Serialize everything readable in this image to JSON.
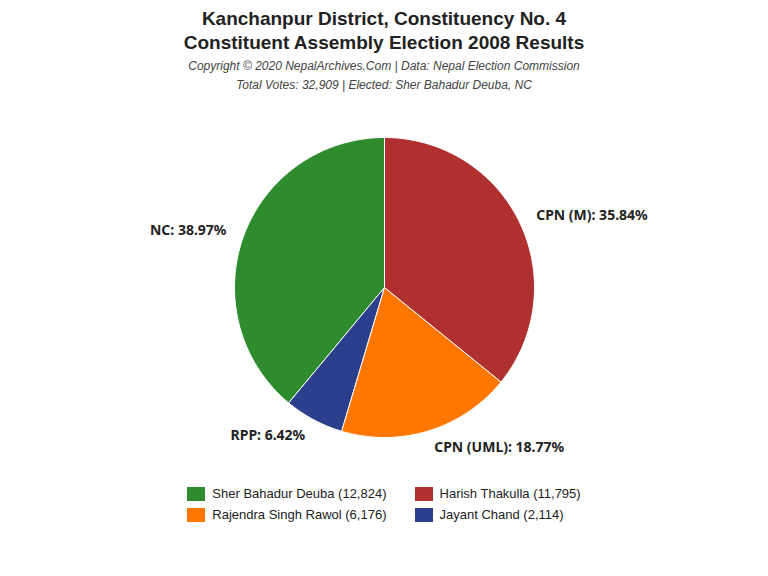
{
  "chart_data": {
    "type": "pie",
    "title": "Kanchanpur District, Constituency No. 4",
    "subtitle": "Constituent Assembly Election 2008 Results",
    "annotations": [
      "Copyright © 2020 NepalArchives.Com | Data: Nepal Election Commission",
      "Total Votes: 32,909 | Elected: Sher Bahadur Deuba, NC"
    ],
    "categories": [
      "NC",
      "RPP",
      "CPN (UML)",
      "CPN (M)"
    ],
    "values": [
      38.97,
      6.42,
      18.77,
      35.84
    ],
    "colors": [
      "#2e8b2e",
      "#2b3f8c",
      "#ff7700",
      "#b03030"
    ],
    "data_labels": true,
    "value_labels": [
      "NC: 38.97%",
      "RPP: 6.42%",
      "CPN (UML): 18.77%",
      "CPN (M): 35.84%"
    ],
    "legend": "bottom",
    "legend_entries": [
      {
        "label": "Sher Bahadur Deuba (12,824)",
        "color": "#2e8b2e"
      },
      {
        "label": "Harish Thakulla (11,795)",
        "color": "#b03030"
      },
      {
        "label": "Rajendra Singh Rawol (6,176)",
        "color": "#ff7700"
      },
      {
        "label": "Jayant Chand (2,114)",
        "color": "#2b3f8c"
      }
    ]
  }
}
